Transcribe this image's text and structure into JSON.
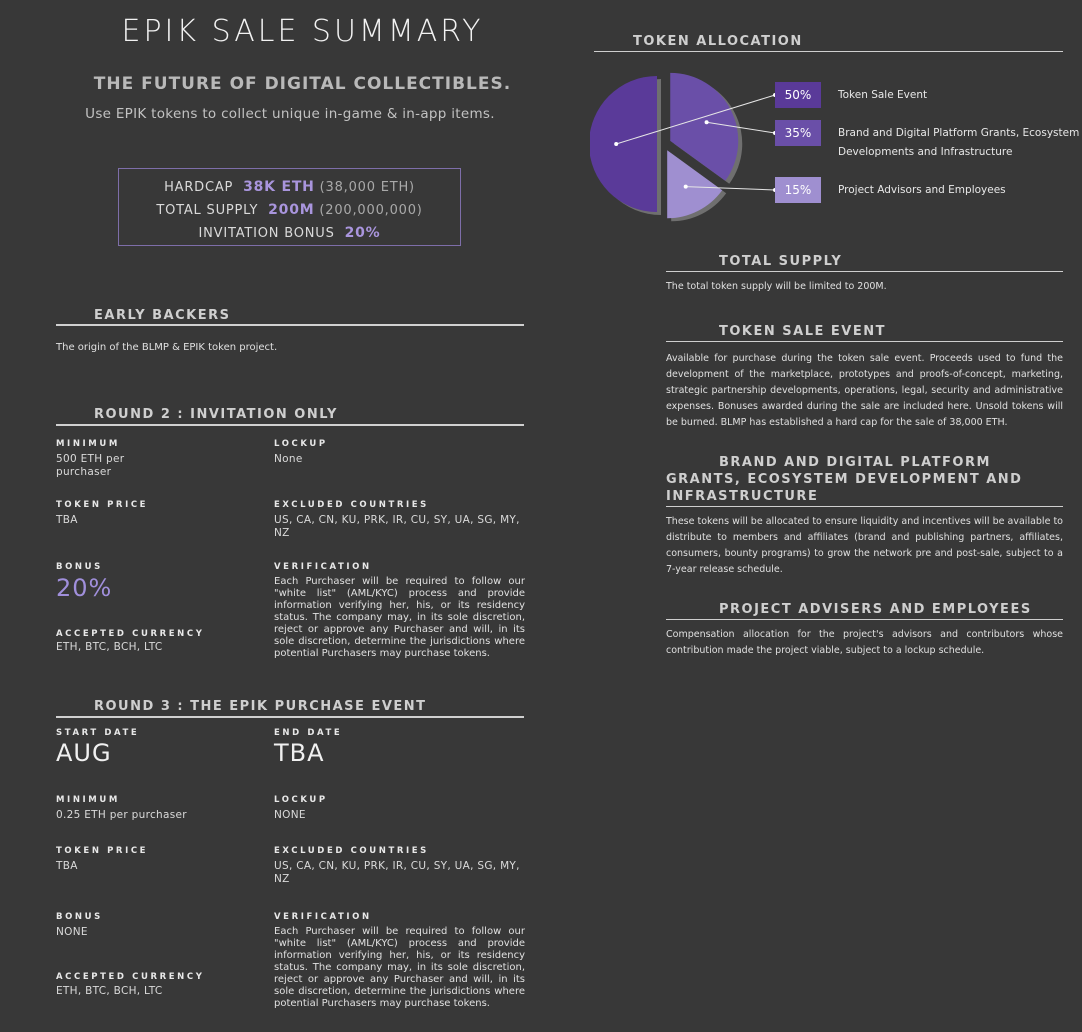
{
  "header": {
    "title": "EPIK SALE SUMMARY",
    "tagline": "THE FUTURE OF DIGITAL COLLECTIBLES.",
    "subtagline": "Use EPIK tokens to collect unique in-game & in-app items."
  },
  "summary_box": {
    "hardcap_label": "HARDCAP",
    "hardcap_value": "38K ETH",
    "hardcap_detail": "(38,000 ETH)",
    "supply_label": "TOTAL SUPPLY",
    "supply_value": "200M",
    "supply_detail": "(200,000,000)",
    "bonus_label": "INVITATION BONUS",
    "bonus_value": "20%"
  },
  "early_backers": {
    "heading": "EARLY BACKERS",
    "text": "The origin of the BLMP & EPIK token project."
  },
  "round2": {
    "heading": "ROUND 2 : INVITATION ONLY",
    "minimum_label": "MINIMUM",
    "minimum_value": "500 ETH per purchaser",
    "lockup_label": "LOCKUP",
    "lockup_value": "None",
    "price_label": "TOKEN PRICE",
    "price_value": "TBA",
    "excluded_label": "EXCLUDED COUNTRIES",
    "excluded_value": "US, CA, CN, KU, PRK, IR, CU, SY, UA, SG, MY, NZ",
    "bonus_label": "BONUS",
    "bonus_value": "20%",
    "verification_label": "VERIFICATION",
    "verification_value": "Each Purchaser will be required to follow our \"white list\" (AML/KYC) process and provide information verifying her, his, or its residency status. The company may, in its sole discretion, reject or approve any Purchaser and will, in its sole discretion, determine the jurisdictions where potential Purchasers may purchase tokens.",
    "currency_label": "ACCEPTED CURRENCY",
    "currency_value": "ETH, BTC, BCH, LTC"
  },
  "round3": {
    "heading": "ROUND 3 : THE EPIK PURCHASE EVENT",
    "start_label": "START DATE",
    "start_value": "AUG",
    "end_label": "END DATE",
    "end_value": "TBA",
    "minimum_label": "MINIMUM",
    "minimum_value": "0.25 ETH per purchaser",
    "lockup_label": "LOCKUP",
    "lockup_value": "NONE",
    "price_label": "TOKEN PRICE",
    "price_value": "TBA",
    "excluded_label": "EXCLUDED COUNTRIES",
    "excluded_value": "US, CA, CN, KU, PRK, IR, CU, SY, UA, SG, MY, NZ",
    "bonus_label": "BONUS",
    "bonus_value": "NONE",
    "verification_label": "VERIFICATION",
    "verification_value": "Each Purchaser will be required to follow our \"white list\" (AML/KYC) process and provide information verifying her, his, or its residency status. The company may, in its sole discretion, reject or approve any Purchaser and will, in its sole discretion, determine the jurisdictions where potential Purchasers may purchase tokens.",
    "currency_label": "ACCEPTED CURRENCY",
    "currency_value": "ETH, BTC, BCH, LTC"
  },
  "allocation": {
    "heading": "TOKEN ALLOCATION",
    "chart_data": {
      "type": "pie",
      "slices": [
        {
          "label": "Token Sale Event",
          "value": 50,
          "pct_label": "50%",
          "color": "#5a3a99",
          "label_lines": [
            "Token Sale Event"
          ]
        },
        {
          "label": "Brand and Digital Platform Grants, Ecosystem Developments and Infrastructure",
          "value": 35,
          "pct_label": "35%",
          "color": "#6a4fa8",
          "label_lines": [
            "Brand and Digital Platform Grants, Ecosystem",
            "Developments and Infrastructure"
          ]
        },
        {
          "label": "Project Advisors and Employees",
          "value": 15,
          "pct_label": "15%",
          "color": "#9f8fd0",
          "label_lines": [
            "Project Advisors and Employees"
          ]
        }
      ]
    }
  },
  "total_supply": {
    "heading": "TOTAL SUPPLY",
    "text": "The total token supply will be limited to 200M."
  },
  "token_sale_event": {
    "heading": "TOKEN SALE EVENT",
    "text": "Available for purchase during the token sale event. Proceeds used to fund the development of the marketplace, prototypes and proofs-of-concept, marketing, strategic partnership developments, operations, legal, security and administrative expenses. Bonuses awarded during the sale are included here. Unsold tokens will be burned. BLMP has established a hard cap for the sale of 38,000 ETH."
  },
  "grants": {
    "heading": "BRAND AND DIGITAL PLATFORM GRANTS, ECOSYSTEM DEVELOPMENT AND INFRASTRUCTURE",
    "text": "These tokens will be allocated to ensure liquidity and incentives will be available to distribute to members and affiliates (brand and publishing partners, affiliates, consumers, bounty programs) to grow the network pre and post-sale, subject to a 7-year release schedule."
  },
  "advisers": {
    "heading": "PROJECT ADVISERS AND EMPLOYEES",
    "text": "Compensation allocation for the project's advisors and contributors whose contribution made the project viable, subject to a lockup schedule."
  }
}
